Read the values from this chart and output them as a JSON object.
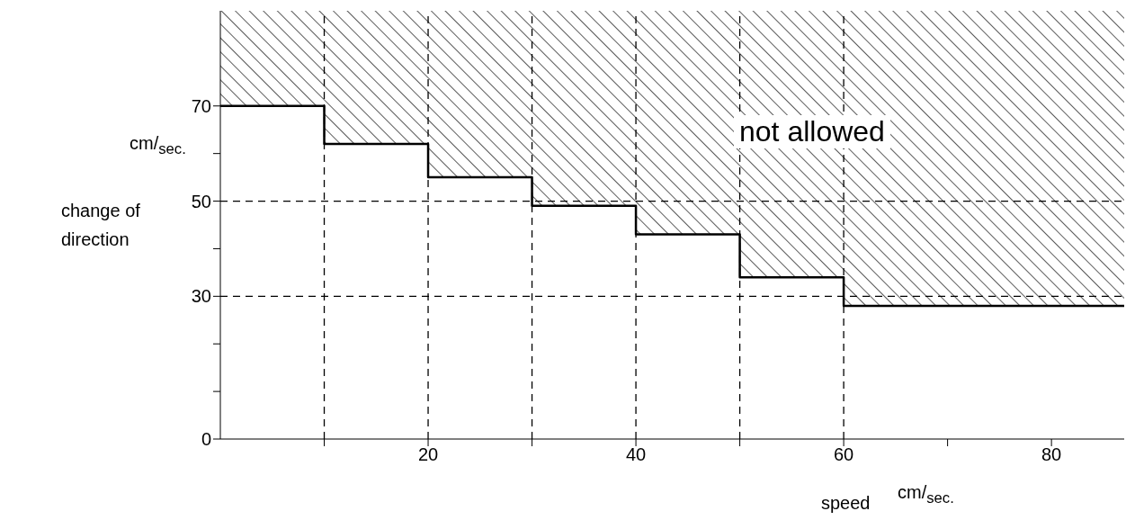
{
  "chart_data": {
    "type": "step",
    "xlabel": "speed",
    "ylabel": "change of direction",
    "annotations": [
      "cm/$_{sec.}$",
      "cm/$_{sec.}$",
      "not allowed"
    ],
    "x": [
      0,
      10,
      20,
      30,
      40,
      50,
      60,
      87
    ],
    "series": [
      {
        "color": "#000000",
        "values": [
          70,
          62,
          55,
          49,
          43,
          34,
          28,
          28
        ],
        "lower": [
          70,
          62,
          55,
          49,
          43,
          34,
          28,
          28
        ],
        "upper": [
          90,
          90,
          90,
          90,
          90,
          90,
          90,
          90
        ]
      }
    ],
    "xlim": [
      0,
      87
    ],
    "ylim": [
      0,
      90
    ],
    "xticks": [
      {
        "value": 10,
        "label": null
      },
      20,
      {
        "value": 30,
        "label": null
      },
      40,
      {
        "value": 50,
        "label": null
      },
      60,
      {
        "value": 70,
        "label": null
      },
      80
    ],
    "yticks": [
      0,
      {
        "value": 10,
        "label": null
      },
      {
        "value": 20,
        "label": null
      },
      30,
      {
        "value": 40,
        "label": null
      },
      50,
      {
        "value": 60,
        "label": null
      },
      70
    ],
    "ref_lines": [
      {
        "axis": "x",
        "value": 10,
        "line_style": "dashed"
      },
      {
        "axis": "x",
        "value": 20,
        "line_style": "dashed"
      },
      {
        "axis": "x",
        "value": 30,
        "line_style": "dashed"
      },
      {
        "axis": "x",
        "value": 40,
        "line_style": "dashed"
      },
      {
        "axis": "x",
        "value": 50,
        "line_style": "dashed"
      },
      {
        "axis": "x",
        "value": 60,
        "line_style": "dashed"
      },
      {
        "axis": "y",
        "value": 30,
        "line_style": "dashed"
      },
      {
        "axis": "y",
        "value": 50,
        "line_style": "dashed"
      }
    ]
  }
}
